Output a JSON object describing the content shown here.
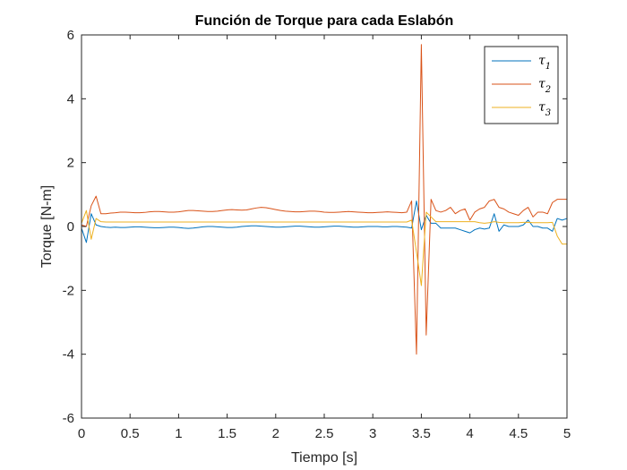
{
  "chart_data": {
    "type": "line",
    "title": "Función de Torque para cada Eslabón",
    "xlabel": "Tiempo [s]",
    "ylabel": "Torque [N-m]",
    "xlim": [
      0,
      5
    ],
    "ylim": [
      -6,
      6
    ],
    "xticks": [
      "0",
      "0.5",
      "1",
      "1.5",
      "2",
      "2.5",
      "3",
      "3.5",
      "4",
      "4.5",
      "5"
    ],
    "yticks": [
      "-6",
      "-4",
      "-2",
      "0",
      "2",
      "4",
      "6"
    ],
    "grid": false,
    "legend_position": "top-right",
    "x": [
      0,
      0.05,
      0.1,
      0.15,
      0.2,
      0.25,
      0.3,
      0.35,
      0.4,
      0.45,
      0.5,
      0.55,
      0.6,
      0.65,
      0.7,
      0.75,
      0.8,
      0.85,
      0.9,
      0.95,
      1,
      1.05,
      1.1,
      1.15,
      1.2,
      1.25,
      1.3,
      1.35,
      1.4,
      1.45,
      1.5,
      1.55,
      1.6,
      1.65,
      1.7,
      1.75,
      1.8,
      1.85,
      1.9,
      1.95,
      2,
      2.05,
      2.1,
      2.15,
      2.2,
      2.25,
      2.3,
      2.35,
      2.4,
      2.45,
      2.5,
      2.55,
      2.6,
      2.65,
      2.7,
      2.75,
      2.8,
      2.85,
      2.9,
      2.95,
      3,
      3.05,
      3.1,
      3.15,
      3.2,
      3.25,
      3.3,
      3.35,
      3.4,
      3.45,
      3.5,
      3.55,
      3.6,
      3.65,
      3.7,
      3.75,
      3.8,
      3.85,
      3.9,
      3.95,
      4,
      4.05,
      4.1,
      4.15,
      4.2,
      4.25,
      4.3,
      4.35,
      4.4,
      4.45,
      4.5,
      4.55,
      4.6,
      4.65,
      4.7,
      4.75,
      4.8,
      4.85,
      4.9,
      4.95,
      5
    ],
    "series": [
      {
        "name": "τ1",
        "legend_base": "τ",
        "legend_sub": "1",
        "color": "#0072BD",
        "values": [
          -0.05,
          -0.5,
          0.4,
          0.05,
          0.0,
          -0.02,
          -0.03,
          -0.02,
          -0.03,
          -0.03,
          -0.02,
          -0.01,
          -0.01,
          -0.02,
          -0.03,
          -0.04,
          -0.04,
          -0.03,
          -0.02,
          -0.02,
          -0.03,
          -0.05,
          -0.06,
          -0.05,
          -0.03,
          -0.01,
          0.0,
          0.0,
          -0.01,
          -0.02,
          -0.03,
          -0.03,
          -0.02,
          0.0,
          0.01,
          0.02,
          0.02,
          0.01,
          0.0,
          -0.01,
          -0.02,
          -0.02,
          -0.01,
          0.0,
          0.01,
          0.01,
          0.0,
          -0.01,
          -0.02,
          -0.02,
          -0.01,
          0.0,
          0.01,
          0.01,
          0.0,
          -0.01,
          -0.02,
          -0.02,
          -0.01,
          0.0,
          0.0,
          0.0,
          -0.01,
          -0.01,
          0.0,
          0.0,
          -0.01,
          -0.02,
          -0.05,
          0.8,
          -0.1,
          0.35,
          0.1,
          0.1,
          -0.05,
          -0.05,
          -0.05,
          -0.05,
          -0.1,
          -0.15,
          -0.2,
          -0.1,
          -0.05,
          -0.08,
          -0.05,
          0.4,
          -0.15,
          0.05,
          0.0,
          0.0,
          0.0,
          0.05,
          0.2,
          0.0,
          0.0,
          -0.05,
          -0.05,
          -0.15,
          0.25,
          0.2,
          0.25
        ]
      },
      {
        "name": "τ2",
        "legend_base": "τ",
        "legend_sub": "2",
        "color": "#D95319",
        "values": [
          0.05,
          0.0,
          0.65,
          0.95,
          0.4,
          0.4,
          0.42,
          0.43,
          0.45,
          0.45,
          0.44,
          0.43,
          0.43,
          0.44,
          0.46,
          0.47,
          0.47,
          0.46,
          0.45,
          0.45,
          0.46,
          0.48,
          0.5,
          0.5,
          0.49,
          0.48,
          0.47,
          0.47,
          0.48,
          0.5,
          0.52,
          0.53,
          0.52,
          0.51,
          0.52,
          0.55,
          0.58,
          0.6,
          0.59,
          0.56,
          0.53,
          0.5,
          0.48,
          0.47,
          0.46,
          0.46,
          0.47,
          0.48,
          0.48,
          0.47,
          0.45,
          0.44,
          0.44,
          0.45,
          0.46,
          0.47,
          0.46,
          0.45,
          0.44,
          0.43,
          0.43,
          0.44,
          0.45,
          0.46,
          0.45,
          0.44,
          0.43,
          0.45,
          0.8,
          -4.0,
          5.7,
          -3.4,
          0.85,
          0.5,
          0.45,
          0.5,
          0.6,
          0.4,
          0.5,
          0.55,
          0.2,
          0.45,
          0.55,
          0.6,
          0.8,
          0.85,
          0.6,
          0.55,
          0.45,
          0.4,
          0.35,
          0.5,
          0.6,
          0.3,
          0.45,
          0.45,
          0.4,
          0.75,
          0.85,
          0.85,
          0.85
        ]
      },
      {
        "name": "τ3",
        "legend_base": "τ",
        "legend_sub": "3",
        "color": "#EDB120",
        "values": [
          0.1,
          0.5,
          -0.4,
          0.25,
          0.15,
          0.14,
          0.14,
          0.14,
          0.14,
          0.14,
          0.14,
          0.14,
          0.14,
          0.14,
          0.14,
          0.14,
          0.14,
          0.14,
          0.14,
          0.14,
          0.14,
          0.14,
          0.14,
          0.14,
          0.14,
          0.14,
          0.14,
          0.14,
          0.14,
          0.14,
          0.14,
          0.14,
          0.14,
          0.14,
          0.14,
          0.14,
          0.14,
          0.14,
          0.14,
          0.14,
          0.14,
          0.14,
          0.14,
          0.14,
          0.14,
          0.14,
          0.14,
          0.14,
          0.14,
          0.14,
          0.14,
          0.14,
          0.14,
          0.14,
          0.14,
          0.14,
          0.14,
          0.14,
          0.14,
          0.14,
          0.14,
          0.14,
          0.14,
          0.14,
          0.14,
          0.14,
          0.14,
          0.14,
          0.2,
          -0.8,
          -1.85,
          0.45,
          0.3,
          0.15,
          0.15,
          0.15,
          0.15,
          0.15,
          0.15,
          0.15,
          0.15,
          0.15,
          0.12,
          0.1,
          0.12,
          0.15,
          0.13,
          0.12,
          0.12,
          0.12,
          0.12,
          0.13,
          0.13,
          0.12,
          0.12,
          0.12,
          0.12,
          0.13,
          -0.3,
          -0.55,
          -0.55
        ]
      }
    ]
  }
}
